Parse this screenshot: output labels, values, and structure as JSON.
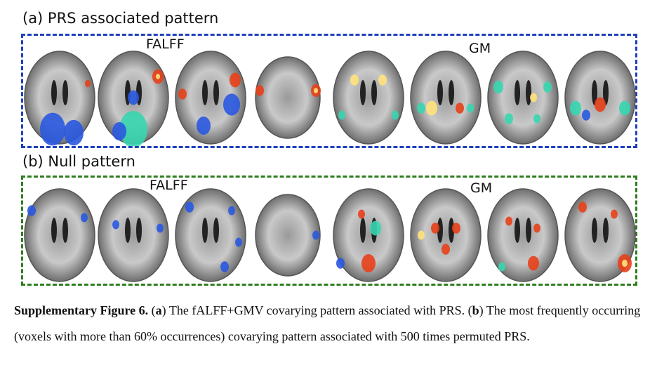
{
  "panels": [
    {
      "title": "(a)  PRS associated pattern",
      "left_label": "FALFF",
      "right_label": "GM",
      "border_color": "#1f3fbf"
    },
    {
      "title": "(b)  Null pattern",
      "left_label": "FALFF",
      "right_label": "GM",
      "border_color": "#2e7d1e"
    }
  ],
  "caption": {
    "label": "Supplementary Figure 6.",
    "a_open": " (",
    "a": "a",
    "a_text": ") The fALFF+GMV covarying pattern associated with PRS. (",
    "b": "b",
    "b_text": ") The most frequently occurring (voxels with more than 60% occurrences) covarying pattern associated with 500 times permuted PRS."
  },
  "colors": {
    "positive": "#e8401a",
    "positive_hot": "#ffe27a",
    "negative": "#2a58e0",
    "negative_light": "#36d6b0"
  }
}
